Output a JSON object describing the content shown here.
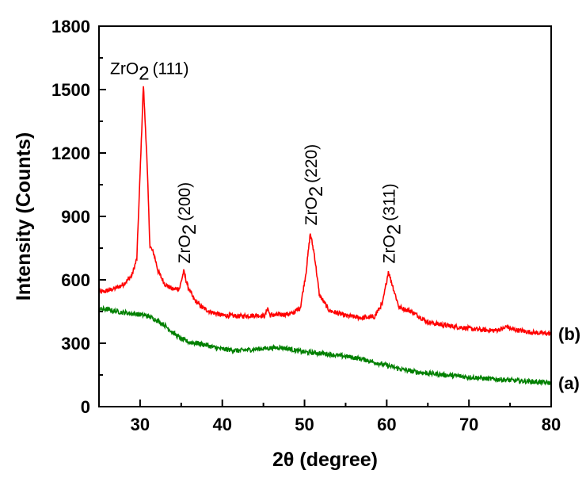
{
  "chart_data": {
    "type": "line",
    "xlabel": "2θ (degree)",
    "ylabel": "Intensity (Counts)",
    "xlim": [
      25,
      80
    ],
    "ylim": [
      0,
      1800
    ],
    "x_ticks": [
      30,
      40,
      50,
      60,
      70,
      80
    ],
    "x_tick_labels": [
      "30",
      "40",
      "50",
      "60",
      "70",
      "80"
    ],
    "y_ticks": [
      0,
      300,
      600,
      900,
      1200,
      1500,
      1800
    ],
    "y_tick_labels": [
      "0",
      "300",
      "600",
      "900",
      "1200",
      "1500",
      "1800"
    ],
    "grid": false,
    "series": [
      {
        "name": "(b)",
        "color": "#ff0000",
        "points": [
          [
            25,
            540
          ],
          [
            26,
            548
          ],
          [
            27,
            560
          ],
          [
            28,
            580
          ],
          [
            29,
            620
          ],
          [
            29.6,
            700
          ],
          [
            30,
            1100
          ],
          [
            30.4,
            1520
          ],
          [
            30.8,
            1200
          ],
          [
            31.2,
            760
          ],
          [
            31.7,
            720
          ],
          [
            32.2,
            640
          ],
          [
            33,
            580
          ],
          [
            34,
            555
          ],
          [
            34.8,
            560
          ],
          [
            35.3,
            640
          ],
          [
            35.8,
            570
          ],
          [
            36.5,
            510
          ],
          [
            37.5,
            470
          ],
          [
            38.5,
            450
          ],
          [
            40,
            432
          ],
          [
            42,
            428
          ],
          [
            44,
            432
          ],
          [
            45.2,
            430
          ],
          [
            45.5,
            470
          ],
          [
            45.8,
            432
          ],
          [
            47,
            435
          ],
          [
            48.5,
            440
          ],
          [
            49.5,
            470
          ],
          [
            50.2,
            640
          ],
          [
            50.7,
            820
          ],
          [
            51.2,
            720
          ],
          [
            51.8,
            530
          ],
          [
            53,
            455
          ],
          [
            55,
            430
          ],
          [
            57,
            420
          ],
          [
            58.5,
            425
          ],
          [
            59.5,
            490
          ],
          [
            60.2,
            640
          ],
          [
            60.8,
            560
          ],
          [
            61.5,
            470
          ],
          [
            63,
            450
          ],
          [
            65,
            400
          ],
          [
            67,
            385
          ],
          [
            69,
            375
          ],
          [
            71,
            365
          ],
          [
            73,
            360
          ],
          [
            74.3,
            370
          ],
          [
            74.6,
            382
          ],
          [
            75,
            368
          ],
          [
            77,
            355
          ],
          [
            78,
            350
          ],
          [
            80,
            345
          ]
        ]
      },
      {
        "name": "(a)",
        "color": "#008000",
        "points": [
          [
            25,
            462
          ],
          [
            26,
            460
          ],
          [
            27,
            452
          ],
          [
            28,
            445
          ],
          [
            29,
            440
          ],
          [
            30,
            436
          ],
          [
            31,
            428
          ],
          [
            32,
            410
          ],
          [
            33,
            385
          ],
          [
            34,
            350
          ],
          [
            35,
            320
          ],
          [
            36,
            305
          ],
          [
            37,
            300
          ],
          [
            38,
            292
          ],
          [
            39,
            280
          ],
          [
            40,
            272
          ],
          [
            41,
            268
          ],
          [
            42,
            265
          ],
          [
            43,
            268
          ],
          [
            44,
            272
          ],
          [
            45,
            275
          ],
          [
            46,
            278
          ],
          [
            47,
            280
          ],
          [
            48,
            275
          ],
          [
            49,
            265
          ],
          [
            50,
            258
          ],
          [
            51,
            255
          ],
          [
            52,
            252
          ],
          [
            53,
            248
          ],
          [
            54,
            242
          ],
          [
            55,
            238
          ],
          [
            56,
            232
          ],
          [
            57,
            225
          ],
          [
            58,
            215
          ],
          [
            59,
            205
          ],
          [
            60,
            195
          ],
          [
            61,
            185
          ],
          [
            62,
            175
          ],
          [
            63,
            168
          ],
          [
            64,
            162
          ],
          [
            65,
            158
          ],
          [
            66,
            155
          ],
          [
            67,
            150
          ],
          [
            68,
            147
          ],
          [
            69,
            143
          ],
          [
            70,
            140
          ],
          [
            71,
            137
          ],
          [
            72,
            133
          ],
          [
            73,
            130
          ],
          [
            74,
            128
          ],
          [
            75,
            125
          ],
          [
            76,
            122
          ],
          [
            77,
            120
          ],
          [
            78,
            118
          ],
          [
            79,
            115
          ],
          [
            80,
            112
          ]
        ]
      }
    ],
    "annotations": [
      {
        "formula": "ZrO",
        "subscript": "2",
        "hkl": "(111)",
        "x": 30.4,
        "y": 1520,
        "rotation": 0
      },
      {
        "formula": "ZrO",
        "subscript": "2",
        "hkl": "(200)",
        "x": 35.3,
        "y": 640,
        "rotation": -90
      },
      {
        "formula": "ZrO",
        "subscript": "2",
        "hkl": "(220)",
        "x": 50.7,
        "y": 820,
        "rotation": -90
      },
      {
        "formula": "ZrO",
        "subscript": "2",
        "hkl": "(311)",
        "x": 60.2,
        "y": 640,
        "rotation": -90
      }
    ],
    "series_labels": [
      {
        "text": "(b)",
        "y": 345
      },
      {
        "text": "(a)",
        "y": 112
      }
    ]
  }
}
